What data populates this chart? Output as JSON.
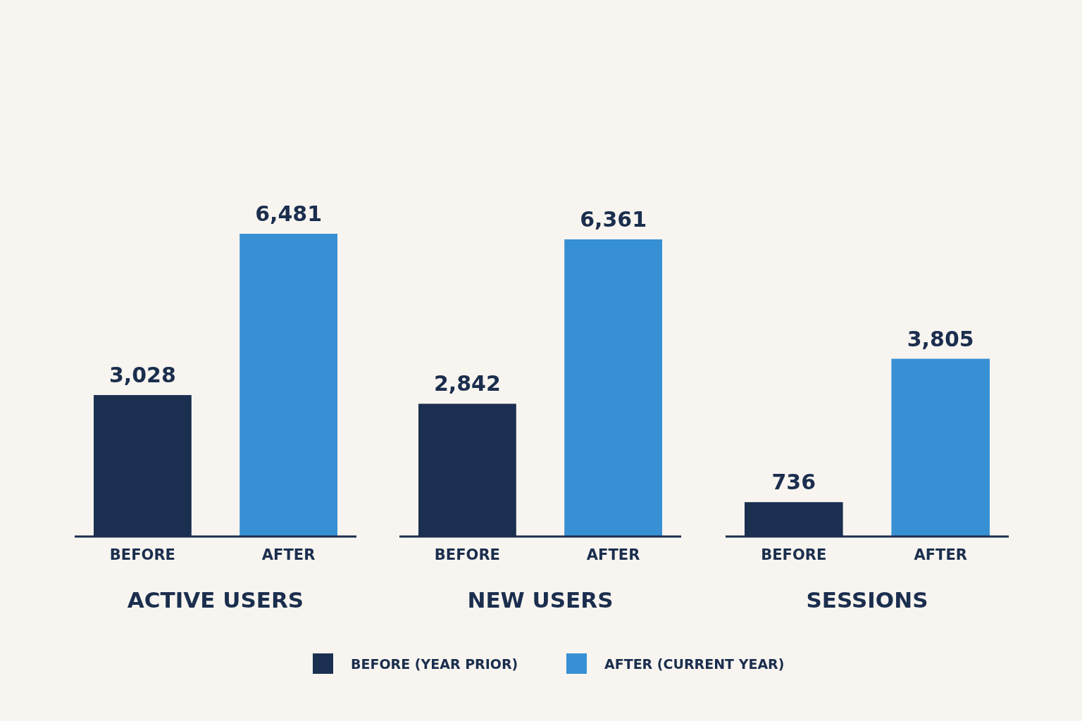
{
  "chart_data": [
    {
      "type": "bar",
      "categories": [
        "BEFORE",
        "AFTER"
      ],
      "xlabel": "ACTIVE USERS",
      "stacked": true,
      "legend": "bottom",
      "series": [
        {
          "name": "BEFORE (YEAR PRIOR)",
          "color": "#1b3050",
          "values": [
            3028,
            null
          ],
          "value_labels": [
            "3,028",
            null
          ]
        },
        {
          "name": "AFTER (CURRENT YEAR)",
          "color": "#3790d4",
          "values": [
            null,
            6481
          ],
          "value_labels": [
            null,
            "6,481"
          ]
        }
      ]
    },
    {
      "type": "bar",
      "categories": [
        "BEFORE",
        "AFTER"
      ],
      "xlabel": "NEW USERS",
      "stacked": true,
      "series": [
        {
          "color": "#1b3050",
          "values": [
            2842,
            null
          ],
          "value_labels": [
            "2,842",
            null
          ]
        },
        {
          "color": "#3790d4",
          "values": [
            null,
            6361
          ],
          "value_labels": [
            null,
            "6,361"
          ]
        }
      ]
    },
    {
      "type": "bar",
      "categories": [
        "BEFORE",
        "AFTER"
      ],
      "xlabel": "SESSIONS",
      "stacked": true,
      "series": [
        {
          "color": "#1b3050",
          "values": [
            736,
            null
          ],
          "value_labels": [
            "736",
            null
          ]
        },
        {
          "color": "#3790d4",
          "values": [
            null,
            3805
          ],
          "value_labels": [
            null,
            "3,805"
          ]
        }
      ]
    }
  ]
}
